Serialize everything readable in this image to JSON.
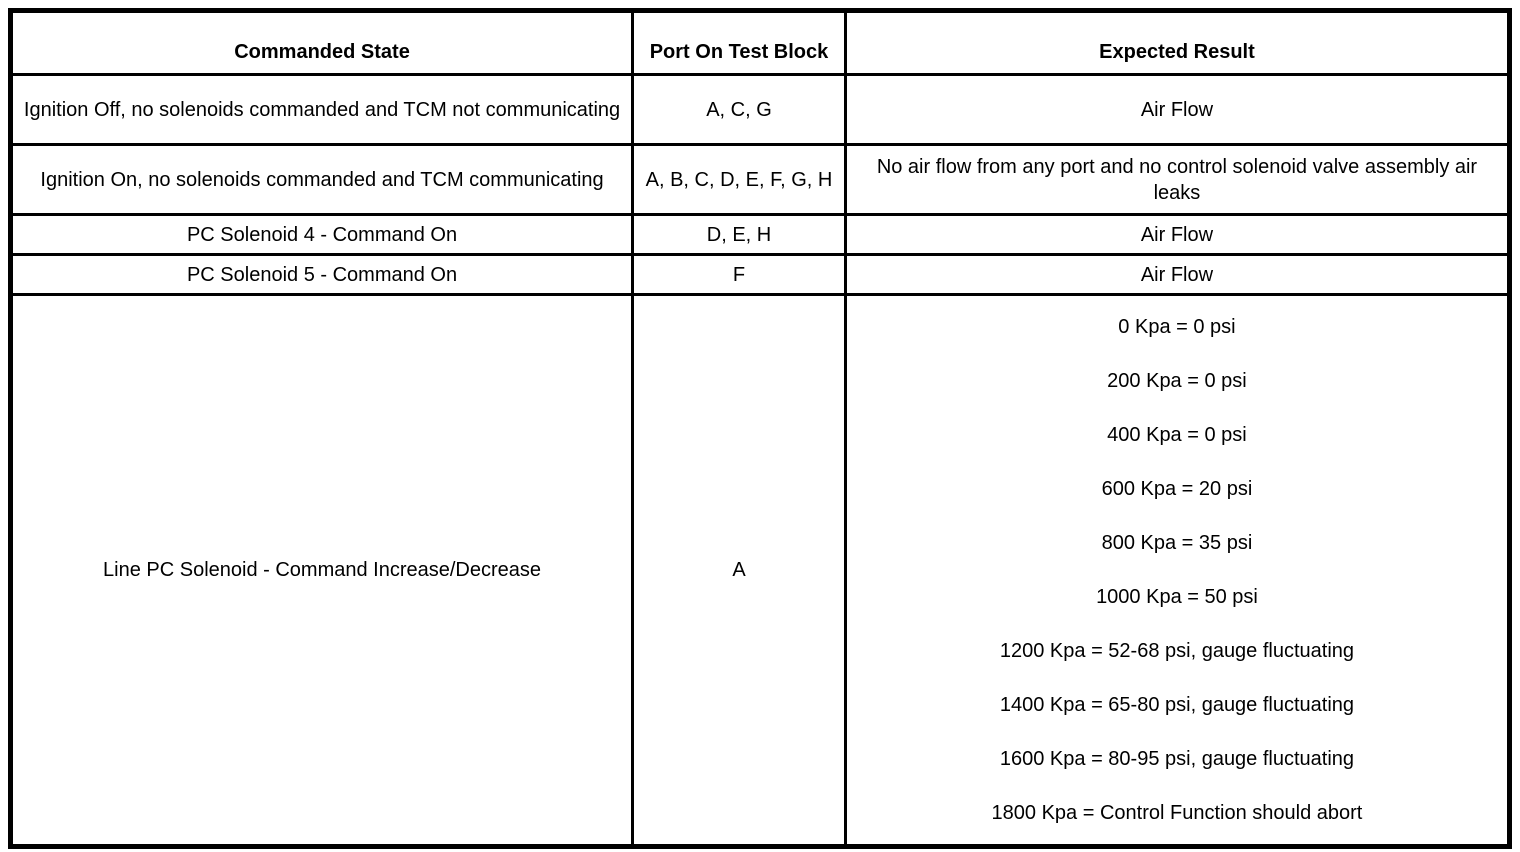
{
  "table": {
    "headers": [
      "Commanded State",
      "Port On Test Block",
      "Expected Result"
    ],
    "rows": [
      {
        "commanded_state": "Ignition Off, no solenoids commanded and TCM not communicating",
        "port": "A, C, G",
        "expected": "Air Flow"
      },
      {
        "commanded_state": "Ignition On, no solenoids commanded and TCM communicating",
        "port": "A, B, C, D, E, F, G, H",
        "expected": "No air flow from any port and no control solenoid valve assembly air leaks"
      },
      {
        "commanded_state": "PC Solenoid 4 - Command On",
        "port": "D, E, H",
        "expected": "Air Flow"
      },
      {
        "commanded_state": "PC Solenoid 5 - Command On",
        "port": "F",
        "expected": "Air Flow"
      },
      {
        "commanded_state": "Line PC Solenoid - Command Increase/Decrease",
        "port": "A",
        "expected_lines": [
          "0 Kpa = 0 psi",
          "200 Kpa = 0 psi",
          "400 Kpa = 0 psi",
          "600 Kpa = 20 psi",
          "800 Kpa = 35 psi",
          "1000 Kpa = 50 psi",
          "1200 Kpa = 52-68 psi, gauge fluctuating",
          "1400 Kpa = 65-80 psi, gauge fluctuating",
          "1600 Kpa = 80-95 psi, gauge fluctuating",
          "1800 Kpa = Control Function should abort"
        ]
      }
    ]
  }
}
